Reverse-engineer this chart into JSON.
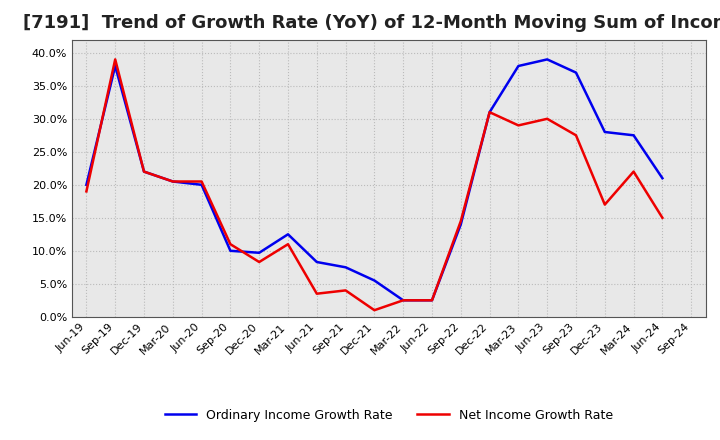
{
  "title": "[7191]  Trend of Growth Rate (YoY) of 12-Month Moving Sum of Incomes",
  "x_labels": [
    "Jun-19",
    "Sep-19",
    "Dec-19",
    "Mar-20",
    "Jun-20",
    "Sep-20",
    "Dec-20",
    "Mar-21",
    "Jun-21",
    "Sep-21",
    "Dec-21",
    "Mar-22",
    "Jun-22",
    "Sep-22",
    "Dec-22",
    "Mar-23",
    "Jun-23",
    "Sep-23",
    "Dec-23",
    "Mar-24",
    "Jun-24",
    "Sep-24"
  ],
  "ordinary_income": [
    0.2,
    0.38,
    0.22,
    0.205,
    0.2,
    0.1,
    0.097,
    0.125,
    0.083,
    0.075,
    0.055,
    0.025,
    0.025,
    0.14,
    0.31,
    0.38,
    0.39,
    0.37,
    0.28,
    0.275,
    0.21,
    null
  ],
  "net_income": [
    0.19,
    0.39,
    0.22,
    0.205,
    0.205,
    0.11,
    0.083,
    0.11,
    0.035,
    0.04,
    0.01,
    0.025,
    0.025,
    0.145,
    0.31,
    0.29,
    0.3,
    0.275,
    0.17,
    0.22,
    0.15,
    null
  ],
  "ordinary_color": "#0000ee",
  "net_color": "#ee0000",
  "ylim": [
    0.0,
    0.42
  ],
  "yticks": [
    0.0,
    0.05,
    0.1,
    0.15,
    0.2,
    0.25,
    0.3,
    0.35,
    0.4
  ],
  "background_color": "#ffffff",
  "plot_bg_color": "#e8e8e8",
  "grid_color": "#bbbbbb",
  "title_fontsize": 13,
  "tick_fontsize": 8,
  "legend_ordinary": "Ordinary Income Growth Rate",
  "legend_net": "Net Income Growth Rate"
}
